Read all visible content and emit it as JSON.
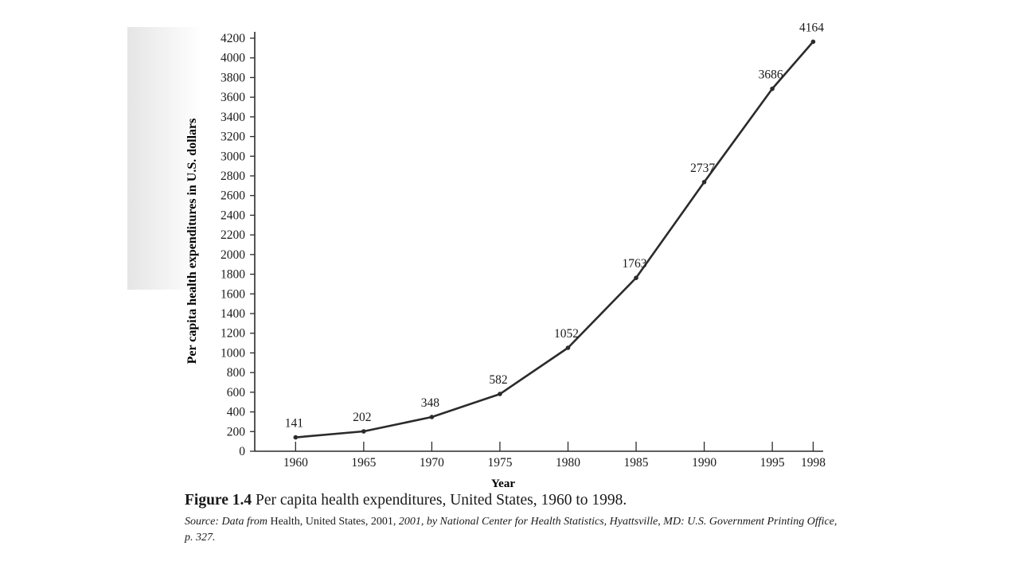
{
  "chart_data": {
    "type": "line",
    "x": [
      1960,
      1965,
      1970,
      1975,
      1980,
      1985,
      1990,
      1995,
      1998
    ],
    "series": [
      {
        "values": [
          141,
          202,
          348,
          582,
          1052,
          1763,
          2737,
          3686,
          4164
        ]
      }
    ],
    "data_labels": [
      "141",
      "202",
      "348",
      "582",
      "1052",
      "1763",
      "2737",
      "3686",
      "4164"
    ],
    "x_ticks": [
      "1960",
      "1965",
      "1970",
      "1975",
      "1980",
      "1985",
      "1990",
      "1995",
      "1998"
    ],
    "y_ticks": [
      0,
      200,
      400,
      600,
      800,
      1000,
      1200,
      1400,
      1600,
      1800,
      2000,
      2200,
      2400,
      2600,
      2800,
      3000,
      3200,
      3400,
      3600,
      3800,
      4000,
      4200
    ],
    "xlabel": "Year",
    "ylabel": "Per capita health expenditures in U.S. dollars",
    "xlim": [
      1957,
      1998.5
    ],
    "ylim": [
      0,
      4200
    ],
    "grid": false,
    "line_color": "#2b2b2b",
    "marker": "dot"
  },
  "caption": {
    "figure_number": "Figure 1.4",
    "text": "Per capita health expenditures, United States, 1960 to 1998."
  },
  "source": {
    "prefix": "Source: Data from ",
    "title": "Health, United States, 2001",
    "rest": ", 2001, by National Center for Health Statistics, Hyattsville, MD: U.S. Government Printing Office, p. 327."
  }
}
